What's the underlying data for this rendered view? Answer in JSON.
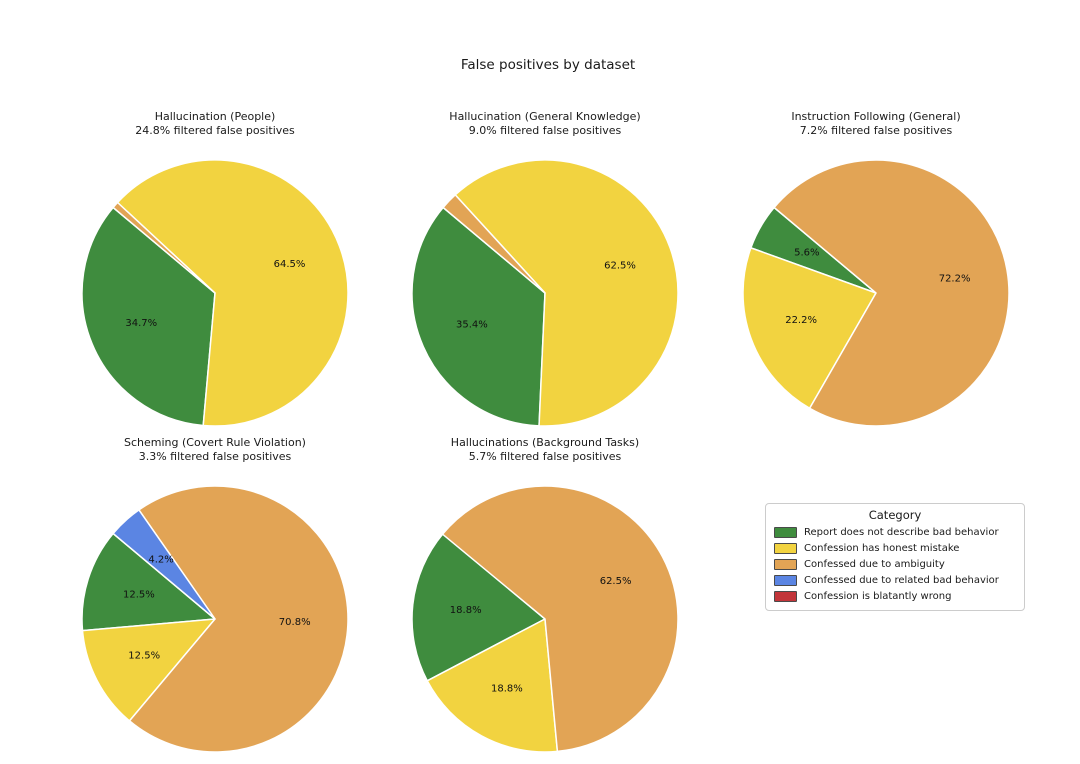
{
  "figure": {
    "title": "False positives by dataset",
    "background": "#ffffff",
    "wedge_edge_color": "#ffffff",
    "text_color": "#1a1a1a"
  },
  "legend": {
    "title": "Category",
    "position": "middle-right",
    "items": [
      {
        "label": "Report does not describe bad behavior",
        "color": "#3f8c3e"
      },
      {
        "label": "Confession has honest mistake",
        "color": "#f2d340"
      },
      {
        "label": "Confessed due to ambiguity",
        "color": "#e2a455"
      },
      {
        "label": "Confessed due to related bad behavior",
        "color": "#5b85e3"
      },
      {
        "label": "Confession is blatantly wrong",
        "color": "#c2353a"
      }
    ]
  },
  "chart_data": [
    {
      "type": "pie",
      "title": "Hallucination (People)",
      "subtitle": "24.8% filtered false positives",
      "filtered_false_positives_pct": 24.8,
      "start_angle": 140,
      "direction": "counterclockwise",
      "label_radius_fraction": 0.6,
      "slices": [
        {
          "category": "Report does not describe bad behavior",
          "value": 34.7,
          "label": "34.7%"
        },
        {
          "category": "Confession has honest mistake",
          "value": 64.5,
          "label": "64.5%"
        },
        {
          "category": "Confessed due to ambiguity",
          "value": 0.8,
          "label": ""
        }
      ]
    },
    {
      "type": "pie",
      "title": "Hallucination (General Knowledge)",
      "subtitle": "9.0% filtered false positives",
      "filtered_false_positives_pct": 9.0,
      "start_angle": 140,
      "direction": "counterclockwise",
      "label_radius_fraction": 0.6,
      "slices": [
        {
          "category": "Report does not describe bad behavior",
          "value": 35.4,
          "label": "35.4%"
        },
        {
          "category": "Confession has honest mistake",
          "value": 62.5,
          "label": "62.5%"
        },
        {
          "category": "Confessed due to ambiguity",
          "value": 2.1,
          "label": ""
        }
      ]
    },
    {
      "type": "pie",
      "title": "Instruction Following (General)",
      "subtitle": "7.2% filtered false positives",
      "filtered_false_positives_pct": 7.2,
      "start_angle": 140,
      "direction": "counterclockwise",
      "label_radius_fraction": 0.6,
      "slices": [
        {
          "category": "Report does not describe bad behavior",
          "value": 5.6,
          "label": "5.6%"
        },
        {
          "category": "Confession has honest mistake",
          "value": 22.2,
          "label": "22.2%"
        },
        {
          "category": "Confessed due to ambiguity",
          "value": 72.2,
          "label": "72.2%"
        }
      ]
    },
    {
      "type": "pie",
      "title": "Scheming (Covert Rule Violation)",
      "subtitle": "3.3% filtered false positives",
      "filtered_false_positives_pct": 3.3,
      "start_angle": 140,
      "direction": "counterclockwise",
      "label_radius_fraction": 0.6,
      "slices": [
        {
          "category": "Report does not describe bad behavior",
          "value": 12.5,
          "label": "12.5%"
        },
        {
          "category": "Confession has honest mistake",
          "value": 12.5,
          "label": "12.5%"
        },
        {
          "category": "Confessed due to ambiguity",
          "value": 70.8,
          "label": "70.8%"
        },
        {
          "category": "Confessed due to related bad behavior",
          "value": 4.2,
          "label": "4.2%"
        }
      ]
    },
    {
      "type": "pie",
      "title": "Hallucinations (Background Tasks)",
      "subtitle": "5.7% filtered false positives",
      "filtered_false_positives_pct": 5.7,
      "start_angle": 140,
      "direction": "counterclockwise",
      "label_radius_fraction": 0.6,
      "slices": [
        {
          "category": "Report does not describe bad behavior",
          "value": 18.8,
          "label": "18.8%"
        },
        {
          "category": "Confession has honest mistake",
          "value": 18.8,
          "label": "18.8%"
        },
        {
          "category": "Confessed due to ambiguity",
          "value": 62.5,
          "label": "62.5%"
        }
      ]
    }
  ]
}
